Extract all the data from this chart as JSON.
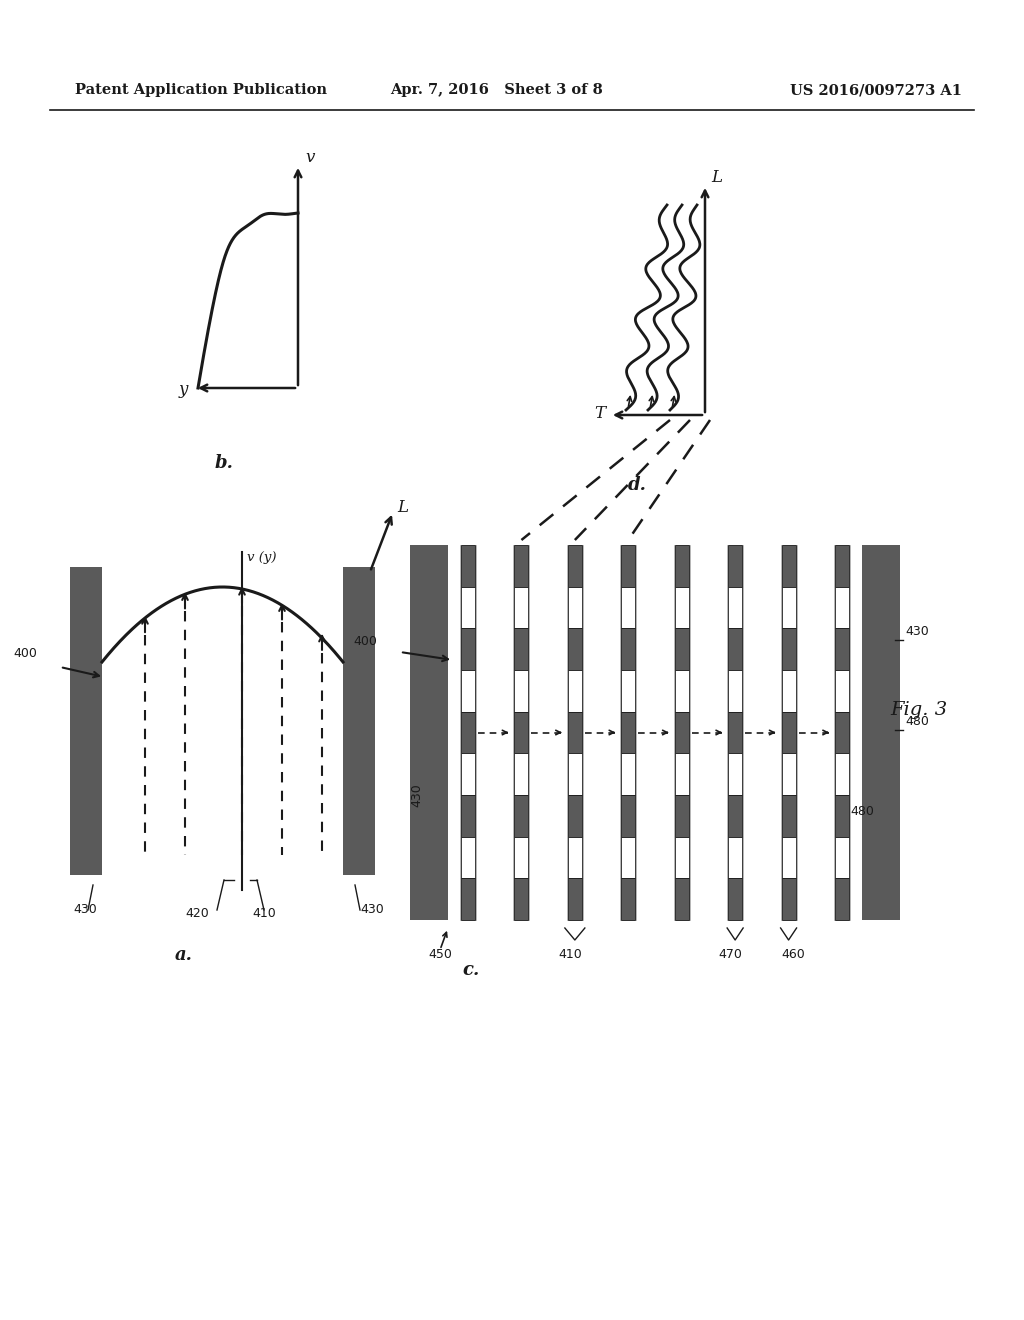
{
  "bg_color": "#ffffff",
  "header_left": "Patent Application Publication",
  "header_mid": "Apr. 7, 2016   Sheet 3 of 8",
  "header_right": "US 2016/0097273 A1",
  "fig_label": "Fig. 3",
  "panel_a_label": "a.",
  "panel_b_label": "b.",
  "panel_c_label": "c.",
  "panel_d_label": "d.",
  "text_color": "#1a1a1a",
  "dark_gray": "#5a5a5a"
}
